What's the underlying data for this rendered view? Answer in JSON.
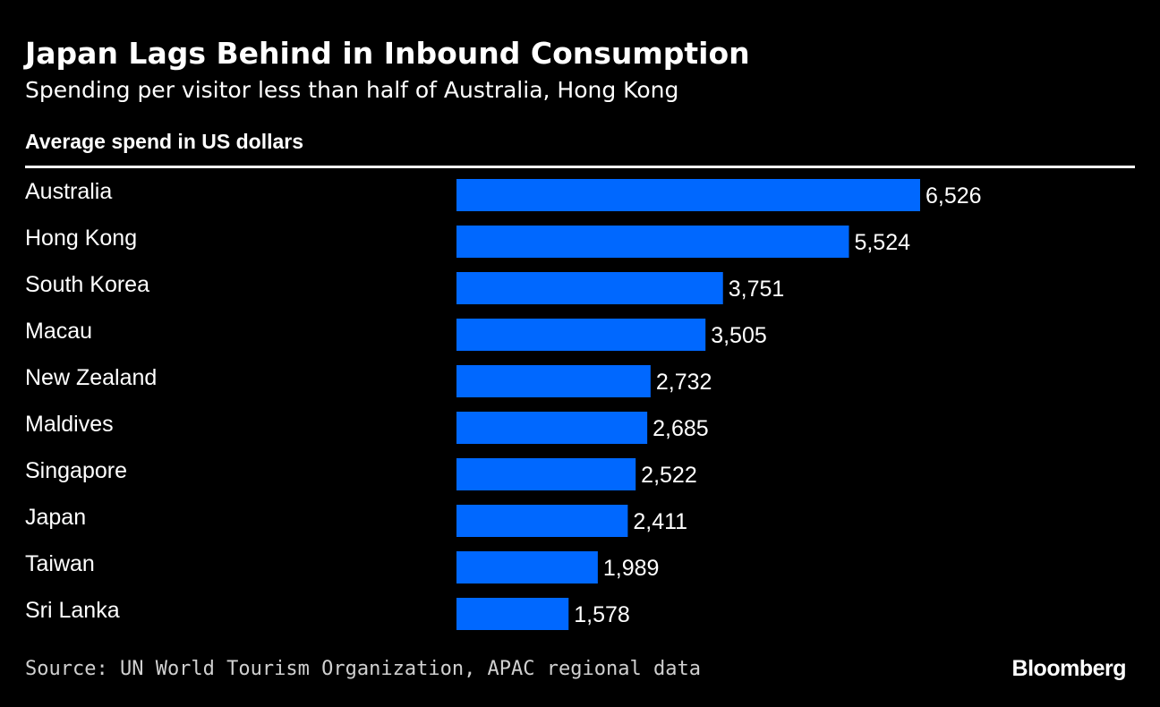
{
  "chart_data": {
    "type": "bar",
    "orientation": "horizontal",
    "title": "Japan Lags Behind in Inbound Consumption",
    "subtitle": "Spending per visitor less than half of Australia, Hong Kong",
    "xlabel": "Average spend in US dollars",
    "ylabel": "",
    "categories": [
      "Australia",
      "Hong Kong",
      "South Korea",
      "Macau",
      "New Zealand",
      "Maldives",
      "Singapore",
      "Japan",
      "Taiwan",
      "Sri Lanka"
    ],
    "values": [
      6526,
      5524,
      3751,
      3505,
      2732,
      2685,
      2522,
      2411,
      1989,
      1578
    ],
    "value_labels": [
      "6,526",
      "5,524",
      "3,751",
      "3,505",
      "2,732",
      "2,685",
      "2,522",
      "2,411",
      "1,989",
      "1,578"
    ],
    "xlim": [
      0,
      6526
    ],
    "grid": false,
    "legend": "none",
    "bar_color": "#0068FF"
  },
  "footer": {
    "source": "Source: UN World Tourism Organization, APAC regional data",
    "brand": "Bloomberg"
  },
  "colors": {
    "background": "#000000",
    "text": "#ffffff",
    "bar": "#0068FF"
  }
}
